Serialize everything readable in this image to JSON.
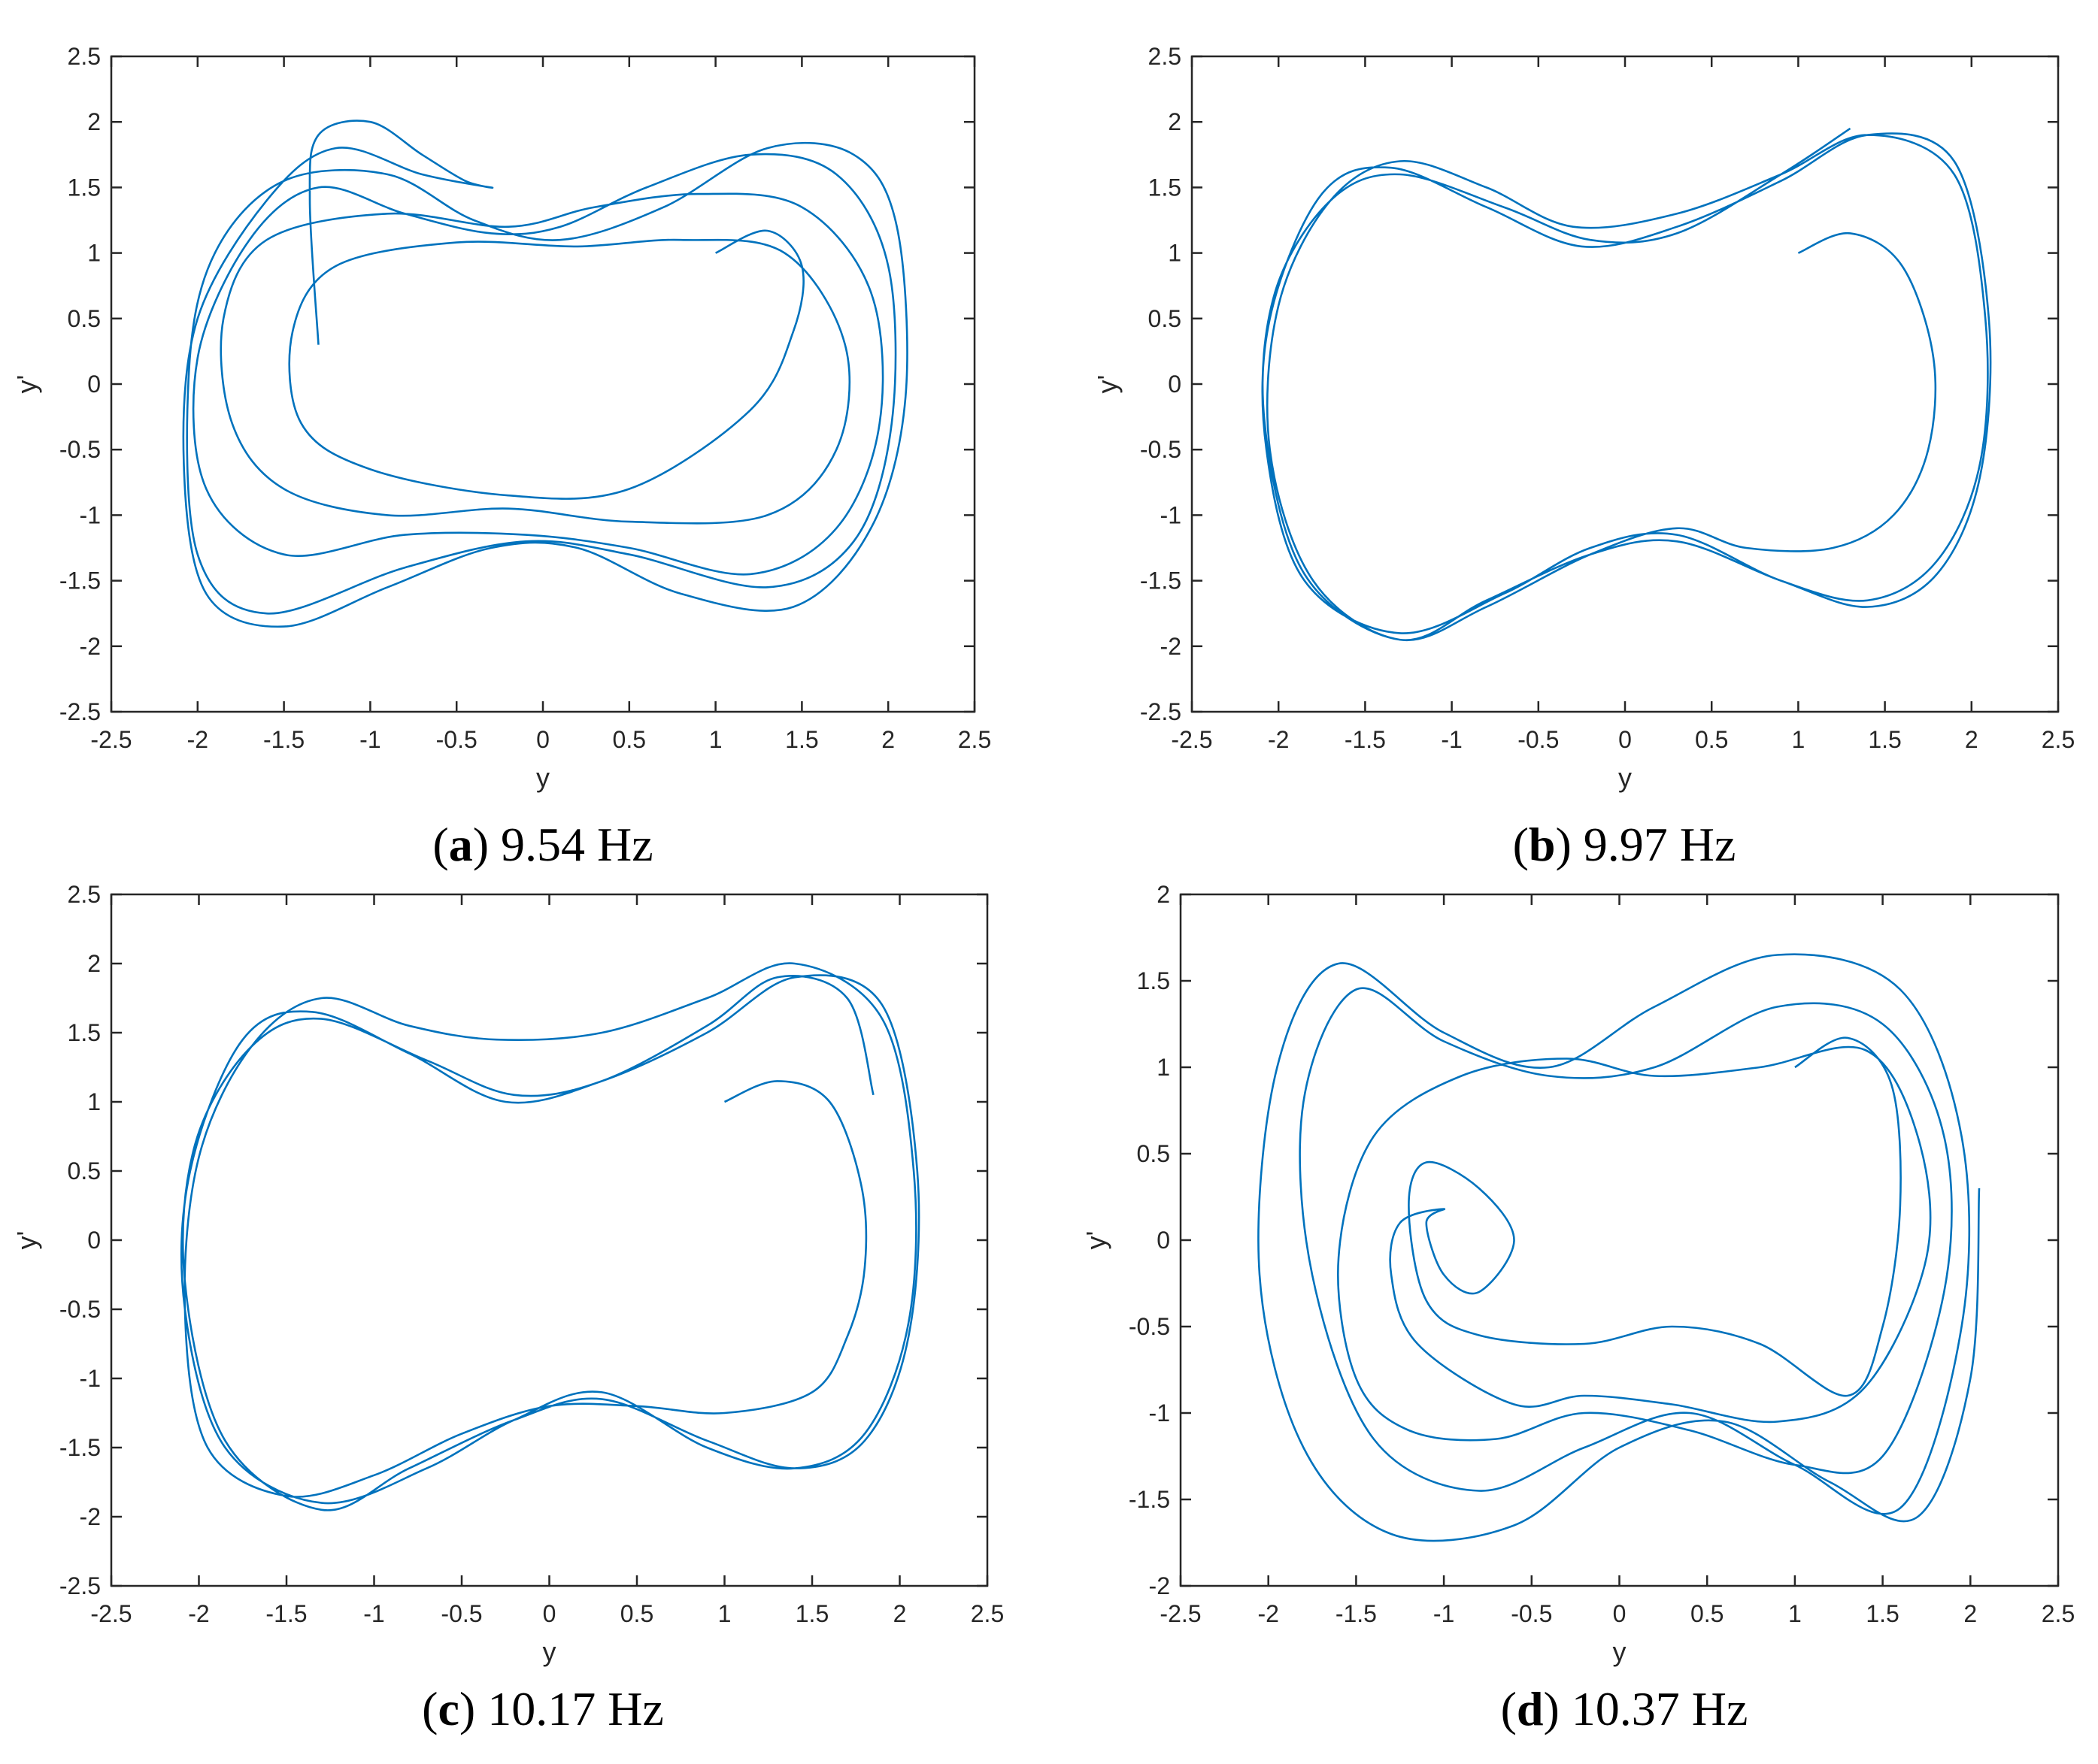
{
  "colors": {
    "curve": "#0072BD",
    "axis": "#262626",
    "caption": "#000000"
  },
  "chart_data": [
    {
      "type": "line",
      "panel": "a",
      "caption_letter": "a",
      "caption_rest": "9.54 Hz",
      "xlabel": "y",
      "ylabel": "y'",
      "xlim": [
        -2.5,
        2.5
      ],
      "ylim": [
        -2.5,
        2.5
      ],
      "xticks": [
        "-2.5",
        "-2",
        "-1.5",
        "-1",
        "-0.5",
        "0",
        "0.5",
        "1",
        "1.5",
        "2",
        "2.5"
      ],
      "yticks": [
        "-2.5",
        "-2",
        "-1.5",
        "-1",
        "-0.5",
        "0",
        "0.5",
        "1",
        "1.5",
        "2",
        "2.5"
      ],
      "grid": false,
      "legend": "none",
      "series": [
        {
          "x": [
            1,
            1.3,
            1.5,
            1.45,
            1.2,
            0.5,
            -0.2,
            -1.0,
            -1.4,
            -1.45,
            -1.2,
            -0.5,
            0.2,
            0.8,
            1.4,
            1.75,
            1.7,
            1.3,
            0.5,
            -0.2,
            -0.9,
            -1.5,
            -1.8,
            -1.85,
            -1.6,
            -0.9,
            -0.2,
            0.3,
            0.9,
            1.5,
            1.9,
            1.95,
            1.7,
            1.2,
            0.5,
            -0.1,
            -0.8,
            -1.5,
            -1.95,
            -2.0,
            -1.7,
            -1.3,
            -0.8,
            -0.3,
            0.1,
            0.6,
            1.2,
            1.7,
            2.0,
            2.02,
            1.8,
            1.3,
            0.5,
            -0.1,
            -0.8,
            -1.6,
            -2.0,
            -2.05,
            -1.9,
            -1.5,
            -0.9,
            -0.4,
            0.1,
            0.7,
            1.3,
            1.8,
            2.05,
            2.1,
            1.9,
            1.45,
            0.8,
            0.2,
            -0.3,
            -0.9,
            -1.5,
            -1.95,
            -2.08,
            -2.0,
            -1.6,
            -1.2,
            -0.7,
            -0.3,
            -0.45,
            -0.7,
            -1.0,
            -1.3,
            -1.35,
            -1.3
          ],
          "y": [
            1,
            1.17,
            0.9,
            0.4,
            -0.2,
            -0.8,
            -0.85,
            -0.65,
            -0.3,
            0.4,
            0.9,
            1.08,
            1.05,
            1.1,
            1.0,
            0.3,
            -0.5,
            -1.0,
            -1.05,
            -0.95,
            -1.0,
            -0.8,
            -0.3,
            0.5,
            1.1,
            1.3,
            1.2,
            1.35,
            1.45,
            1.35,
            0.7,
            -0.3,
            -1.1,
            -1.45,
            -1.25,
            -1.15,
            -1.15,
            -1.3,
            -0.8,
            0.2,
            1.1,
            1.5,
            1.3,
            1.15,
            1.2,
            1.5,
            1.75,
            1.6,
            0.9,
            -0.3,
            -1.2,
            -1.55,
            -1.3,
            -1.2,
            -1.4,
            -1.75,
            -1.3,
            0.1,
            1.0,
            1.55,
            1.6,
            1.25,
            1.1,
            1.35,
            1.8,
            1.75,
            1.2,
            -0.1,
            -1.1,
            -1.7,
            -1.6,
            -1.25,
            -1.25,
            -1.55,
            -1.85,
            -1.6,
            -0.6,
            0.5,
            1.4,
            1.8,
            1.6,
            1.5,
            1.55,
            1.75,
            2.0,
            1.9,
            1.4,
            0.3
          ]
        }
      ]
    },
    {
      "type": "line",
      "panel": "b",
      "caption_letter": "b",
      "caption_rest": "9.97 Hz",
      "xlabel": "y",
      "ylabel": "y'",
      "xlim": [
        -2.5,
        2.5
      ],
      "ylim": [
        -2.5,
        2.5
      ],
      "xticks": [
        "-2.5",
        "-2",
        "-1.5",
        "-1",
        "-0.5",
        "0",
        "0.5",
        "1",
        "1.5",
        "2",
        "2.5"
      ],
      "yticks": [
        "-2.5",
        "-2",
        "-1.5",
        "-1",
        "-0.5",
        "0",
        "0.5",
        "1",
        "1.5",
        "2",
        "2.5"
      ],
      "grid": false,
      "legend": "none",
      "series": [
        {
          "x": [
            1,
            1.3,
            1.6,
            1.78,
            1.75,
            1.55,
            1.2,
            0.7,
            0.3,
            -0.2,
            -0.8,
            -1.3,
            -1.8,
            -2.05,
            -2.0,
            -1.7,
            -1.3,
            -0.8,
            -0.3,
            0.3,
            0.9,
            1.4,
            1.9,
            2.08,
            2.05,
            1.8,
            1.4,
            0.9,
            0.3,
            -0.2,
            -0.7,
            -1.3,
            -1.85,
            -2.07,
            -2.05,
            -1.75,
            -1.35,
            -0.8,
            -0.25,
            0.3,
            0.9,
            1.4,
            1.9,
            2.1,
            2.05,
            1.8,
            1.4,
            0.9,
            0.3,
            -0.2,
            -0.8,
            -1.3,
            -1.85,
            -2.08,
            -2.02,
            -1.7,
            -1.3,
            -0.7,
            -0.2,
            0.3,
            0.9,
            1.3
          ],
          "y": [
            1,
            1.15,
            0.9,
            0.2,
            -0.5,
            -1.0,
            -1.25,
            -1.25,
            -1.1,
            -1.3,
            -1.7,
            -1.95,
            -1.5,
            -0.5,
            0.6,
            1.4,
            1.7,
            1.5,
            1.2,
            1.3,
            1.6,
            1.9,
            1.6,
            0.5,
            -0.6,
            -1.35,
            -1.65,
            -1.5,
            -1.15,
            -1.25,
            -1.6,
            -1.9,
            -1.5,
            -0.5,
            0.5,
            1.45,
            1.65,
            1.35,
            1.05,
            1.2,
            1.55,
            1.9,
            1.7,
            0.5,
            -0.7,
            -1.45,
            -1.7,
            -1.5,
            -1.2,
            -1.3,
            -1.65,
            -1.95,
            -1.45,
            -0.3,
            0.7,
            1.4,
            1.6,
            1.35,
            1.1,
            1.15,
            1.6,
            1.95
          ]
        }
      ]
    },
    {
      "type": "line",
      "panel": "c",
      "caption_letter": "c",
      "caption_rest": "10.17 Hz",
      "xlabel": "y",
      "ylabel": "y'",
      "xlim": [
        -2.5,
        2.5
      ],
      "ylim": [
        -2.5,
        2.5
      ],
      "xticks": [
        "-2.5",
        "-2",
        "-1.5",
        "-1",
        "-0.5",
        "0",
        "0.5",
        "1",
        "1.5",
        "2",
        "2.5"
      ],
      "yticks": [
        "-2.5",
        "-2",
        "-1.5",
        "-1",
        "-0.5",
        "0",
        "0.5",
        "1",
        "1.5",
        "2",
        "2.5"
      ],
      "grid": false,
      "legend": "none",
      "series": [
        {
          "x": [
            1,
            1.3,
            1.6,
            1.78,
            1.8,
            1.7,
            1.5,
            1.0,
            0.5,
            0.0,
            -0.5,
            -1.0,
            -1.5,
            -1.95,
            -2.08,
            -2.0,
            -1.7,
            -1.3,
            -0.8,
            -0.3,
            0.3,
            0.9,
            1.4,
            1.9,
            2.08,
            2.05,
            1.8,
            1.4,
            0.9,
            0.3,
            -0.2,
            -0.7,
            -1.3,
            -1.85,
            -2.08,
            -2.05,
            -1.75,
            -1.35,
            -0.8,
            -0.25,
            0.3,
            0.9,
            1.4,
            1.9,
            2.1,
            2.05,
            1.8,
            1.4,
            0.9,
            0.3,
            -0.2,
            -0.8,
            -1.3,
            -1.85,
            -2.08,
            -2.02,
            -1.7,
            -1.3,
            -0.7,
            -0.2,
            0.3,
            0.9,
            1.3,
            1.7,
            1.85
          ],
          "y": [
            1,
            1.15,
            1.0,
            0.4,
            -0.2,
            -0.7,
            -1.1,
            -1.25,
            -1.2,
            -1.2,
            -1.4,
            -1.7,
            -1.85,
            -1.5,
            -0.5,
            0.6,
            1.4,
            1.75,
            1.55,
            1.45,
            1.5,
            1.75,
            2.0,
            1.6,
            0.5,
            -0.6,
            -1.4,
            -1.65,
            -1.5,
            -1.1,
            -1.3,
            -1.65,
            -1.9,
            -1.5,
            -0.5,
            0.5,
            1.45,
            1.65,
            1.35,
            1.0,
            1.15,
            1.5,
            1.9,
            1.7,
            0.5,
            -0.7,
            -1.45,
            -1.65,
            -1.45,
            -1.15,
            -1.3,
            -1.65,
            -1.95,
            -1.45,
            -0.3,
            0.7,
            1.4,
            1.6,
            1.3,
            1.05,
            1.15,
            1.55,
            1.9,
            1.75,
            1.05
          ]
        }
      ]
    },
    {
      "type": "line",
      "panel": "d",
      "caption_letter": "d",
      "caption_rest": "10.37 Hz",
      "xlabel": "y",
      "ylabel": "y'",
      "xlim": [
        -2.5,
        2.5
      ],
      "ylim": [
        -2,
        2
      ],
      "xticks": [
        "-2.5",
        "-2",
        "-1.5",
        "-1",
        "-0.5",
        "0",
        "0.5",
        "1",
        "1.5",
        "2",
        "2.5"
      ],
      "yticks": [
        "-2",
        "-1.5",
        "-1",
        "-0.5",
        "0",
        "0.5",
        "1",
        "1.5",
        "2"
      ],
      "grid": false,
      "legend": "none",
      "series": [
        {
          "x": [
            1,
            1.3,
            1.55,
            1.6,
            1.5,
            1.3,
            0.8,
            0.3,
            -0.2,
            -0.8,
            -1.1,
            -1.2,
            -1.1,
            -0.8,
            -0.6,
            -0.8,
            -1.0,
            -1.1,
            -1.0,
            -1.25,
            -1.3,
            -1.15,
            -0.6,
            -0.2,
            0.3,
            0.9,
            1.4,
            1.75,
            1.7,
            1.4,
            0.8,
            0.2,
            -0.3,
            -0.9,
            -1.4,
            -1.6,
            -1.5,
            -1.2,
            -0.7,
            -0.2,
            0.4,
            1.0,
            1.5,
            1.85,
            1.85,
            1.5,
            0.9,
            0.2,
            -0.4,
            -1.0,
            -1.5,
            -1.8,
            -1.75,
            -1.4,
            -0.8,
            -0.2,
            0.4,
            1.0,
            1.6,
            1.95,
            1.95,
            1.6,
            0.9,
            0.2,
            -0.4,
            -1.0,
            -1.6,
            -1.95,
            -2.05,
            -1.8,
            -1.3,
            -0.6,
            0.0,
            0.6,
            1.2,
            1.7,
            2.0,
            2.05
          ],
          "y": [
            1,
            1.17,
            0.9,
            0.2,
            -0.5,
            -0.9,
            -0.6,
            -0.5,
            -0.6,
            -0.55,
            -0.35,
            0.2,
            0.45,
            0.3,
            0.0,
            -0.3,
            -0.2,
            0.1,
            0.18,
            0.1,
            -0.2,
            -0.6,
            -0.95,
            -0.9,
            -0.95,
            -1.05,
            -0.85,
            -0.1,
            0.6,
            1.1,
            1.0,
            0.95,
            1.05,
            0.95,
            0.6,
            -0.1,
            -0.8,
            -1.1,
            -1.15,
            -1.0,
            -1.1,
            -1.3,
            -1.25,
            -0.3,
            0.6,
            1.25,
            1.35,
            1.0,
            0.95,
            1.15,
            1.45,
            0.8,
            -0.2,
            -1.15,
            -1.45,
            -1.2,
            -1.0,
            -1.3,
            -1.55,
            -0.5,
            0.6,
            1.45,
            1.65,
            1.35,
            1.0,
            1.2,
            1.6,
            1.0,
            -0.2,
            -1.2,
            -1.7,
            -1.65,
            -1.2,
            -1.05,
            -1.4,
            -1.6,
            -0.8,
            0.3
          ]
        }
      ]
    }
  ]
}
